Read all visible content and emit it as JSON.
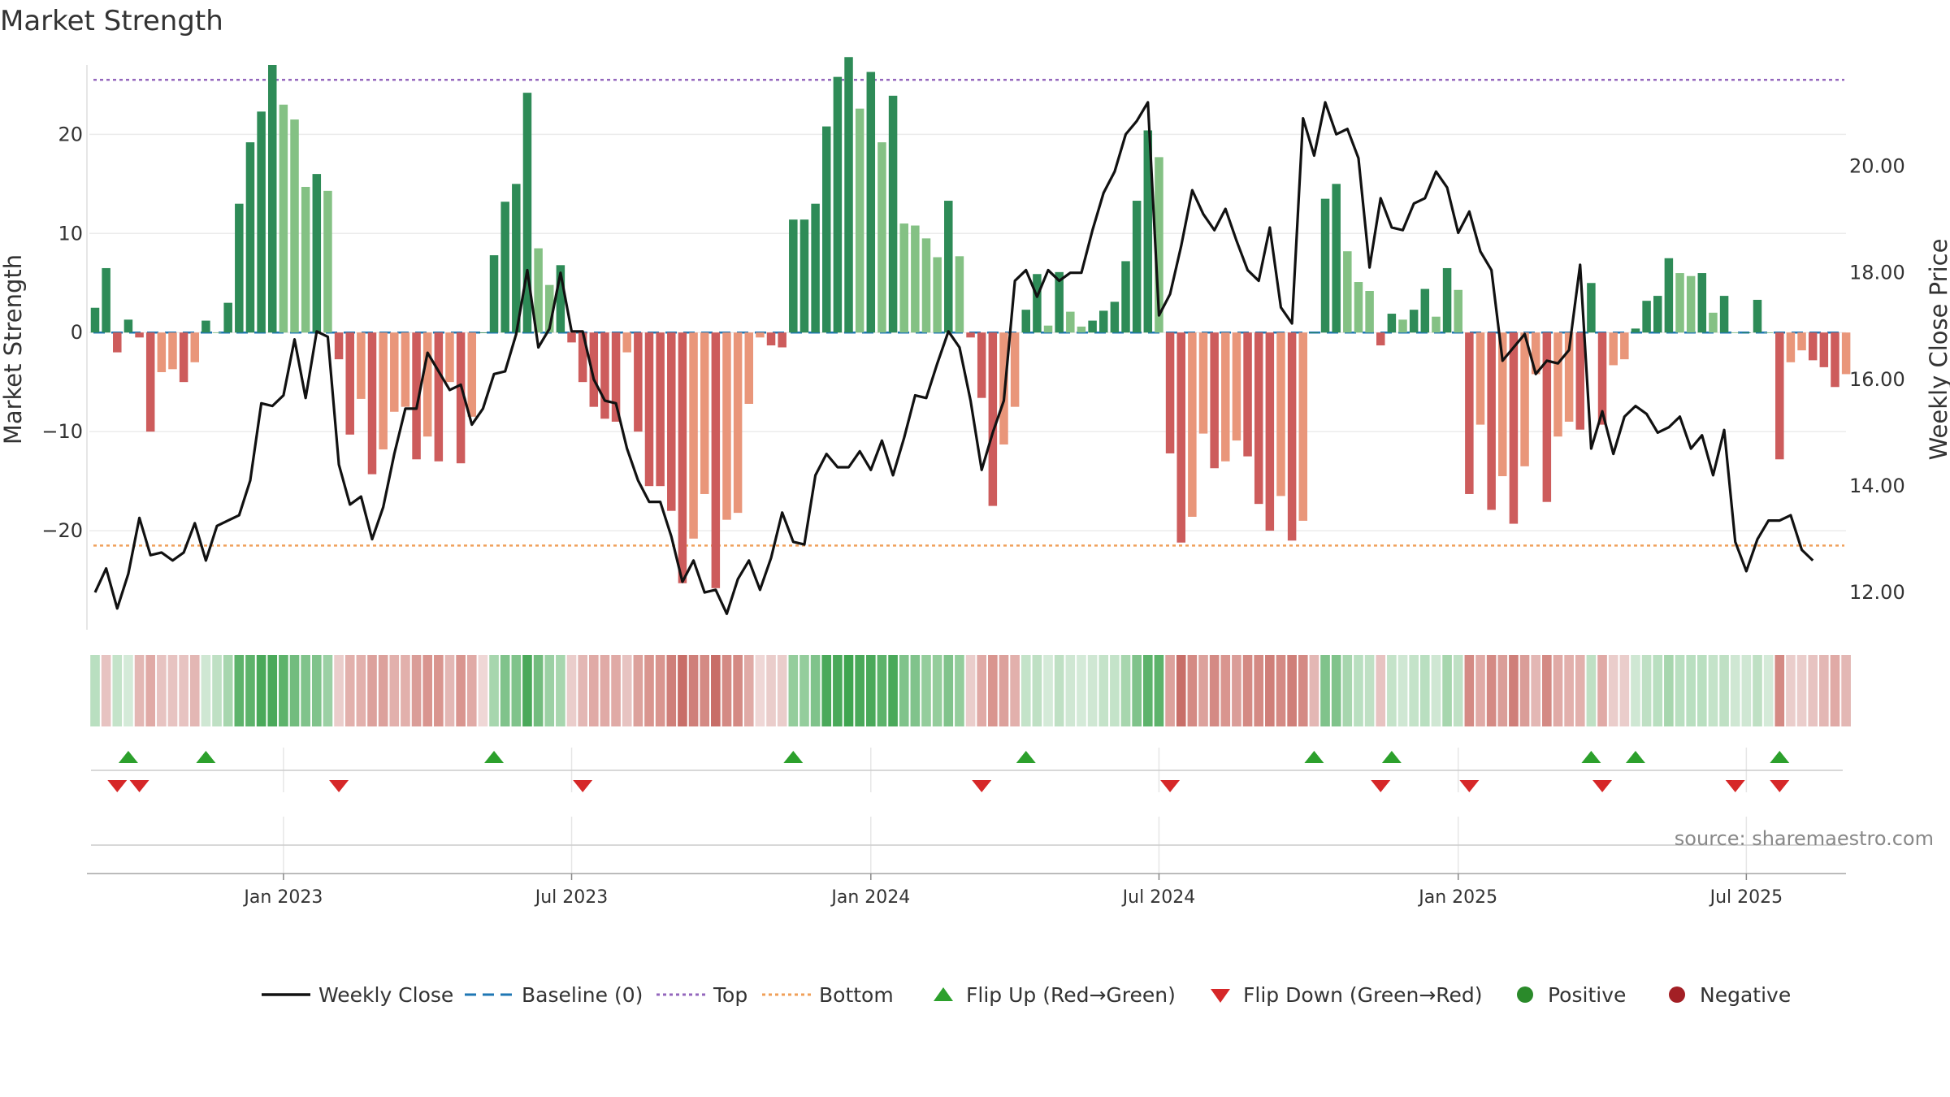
{
  "chart_data": {
    "type": "bar",
    "title": "Market Strength",
    "ylabel_left": "Market Strength",
    "ylabel_right": "Weekly Close Price",
    "left_ylim": [
      -30,
      27
    ],
    "left_ticks": [
      -20,
      -10,
      0,
      10,
      20
    ],
    "left_tick_labels": [
      "−20",
      "−10",
      "0",
      "10",
      "20"
    ],
    "right_ylim": [
      11.3,
      21.9
    ],
    "right_ticks": [
      12,
      14,
      16,
      18,
      20
    ],
    "right_tick_labels": [
      "12.00",
      "14.00",
      "16.00",
      "18.00",
      "20.00"
    ],
    "top_line": 25.5,
    "bottom_line": -21.5,
    "x_ticks": [
      {
        "label": "Jan 2023",
        "week": 17
      },
      {
        "label": "Jul 2023",
        "week": 43
      },
      {
        "label": "Jan 2024",
        "week": 70
      },
      {
        "label": "Jul 2024",
        "week": 96
      },
      {
        "label": "Jan 2025",
        "week": 123
      },
      {
        "label": "Jul 2025",
        "week": 149
      }
    ],
    "strength": [
      2.5,
      6.5,
      -2,
      1.3,
      -0.5,
      -10,
      -4,
      -3.7,
      -5,
      -3,
      1.2,
      0,
      3,
      13,
      19.2,
      22.3,
      27,
      23,
      21.5,
      14.7,
      16,
      14.3,
      -2.7,
      -10.3,
      -6.7,
      -14.3,
      -11.8,
      -8,
      -7.5,
      -12.8,
      -10.5,
      -13,
      -5,
      -13.2,
      -8.5,
      0,
      7.8,
      13.2,
      15,
      24.2,
      8.5,
      4.8,
      6.8,
      -1,
      -5,
      -7.5,
      -8.7,
      -9,
      -2,
      -10,
      -15.5,
      -15.5,
      -18,
      -25.3,
      -20.8,
      -16.3,
      -25.8,
      -18.9,
      -18.2,
      -7.2,
      -0.5,
      -1.3,
      -1.5,
      11.4,
      11.4,
      13,
      20.8,
      25.8,
      27.8,
      22.6,
      26.3,
      19.2,
      23.9,
      11,
      10.8,
      9.5,
      7.6,
      13.3,
      7.7,
      -0.5,
      -6.6,
      -17.5,
      -11.3,
      -7.5,
      2.3,
      5.9,
      0.7,
      6.1,
      2.1,
      0.6,
      1.2,
      2.2,
      3.1,
      7.2,
      13.3,
      20.4,
      17.7,
      -12.2,
      -21.2,
      -18.6,
      -10.2,
      -13.7,
      -13,
      -10.9,
      -12.5,
      -17.3,
      -20,
      -16.5,
      -21,
      -19,
      0,
      13.5,
      15,
      8.2,
      5.1,
      4.2,
      -1.3,
      1.9,
      1.3,
      2.3,
      4.4,
      1.6,
      6.5,
      4.3,
      -16.3,
      -9.3,
      -17.9,
      -14.5,
      -19.3,
      -13.5,
      -4.2,
      -17.1,
      -10.5,
      -9,
      -9.8,
      5,
      -9.3,
      -3.3,
      -2.7,
      0.4,
      3.2,
      3.7,
      7.5,
      6,
      5.7,
      6,
      2,
      3.7,
      0,
      0,
      3.3,
      0,
      -12.8,
      -3,
      -1.8,
      -2.8,
      -3.5,
      -5.5,
      -4.2
    ],
    "weekly_close": [
      12,
      12.45,
      11.7,
      12.35,
      13.4,
      12.7,
      12.75,
      12.6,
      12.75,
      13.3,
      12.6,
      13.25,
      13.35,
      13.45,
      14.1,
      15.55,
      15.5,
      15.7,
      16.75,
      15.65,
      16.9,
      16.8,
      14.4,
      13.65,
      13.8,
      13.0,
      13.6,
      14.6,
      15.45,
      15.45,
      16.5,
      16.15,
      15.8,
      15.9,
      15.15,
      15.45,
      16.1,
      16.15,
      16.85,
      18.05,
      16.6,
      16.95,
      18.0,
      16.9,
      16.9,
      16.0,
      15.6,
      15.55,
      14.7,
      14.1,
      13.7,
      13.7,
      13.05,
      12.2,
      12.6,
      12.0,
      12.05,
      11.6,
      12.25,
      12.6,
      12.05,
      12.65,
      13.5,
      12.95,
      12.9,
      14.2,
      14.6,
      14.35,
      14.35,
      14.65,
      14.3,
      14.85,
      14.2,
      14.9,
      15.7,
      15.65,
      16.3,
      16.9,
      16.6,
      15.6,
      14.3,
      15.0,
      15.6,
      17.85,
      18.05,
      17.55,
      18.05,
      17.85,
      18.0,
      18.0,
      18.8,
      19.5,
      19.9,
      20.6,
      20.85,
      21.2,
      17.2,
      17.6,
      18.5,
      19.55,
      19.1,
      18.8,
      19.2,
      18.6,
      18.05,
      17.85,
      18.85,
      17.35,
      17.05,
      20.9,
      20.2,
      21.2,
      20.6,
      20.7,
      20.15,
      18.1,
      19.4,
      18.85,
      18.8,
      19.3,
      19.4,
      19.9,
      19.6,
      18.75,
      19.15,
      18.4,
      18.05,
      16.35,
      16.6,
      16.85,
      16.1,
      16.35,
      16.3,
      16.55,
      18.15,
      14.7,
      15.4,
      14.6,
      15.3,
      15.5,
      15.35,
      15.0,
      15.1,
      15.3,
      14.7,
      14.95,
      14.2,
      15.05,
      12.95,
      12.4,
      13.0,
      13.35,
      13.35,
      13.45,
      12.8,
      12.6
    ],
    "strip_colors": [
      "#b9dfc0",
      "#e7c3c1",
      "#c4e3c9",
      "#d4ead8",
      "#e3b7b4",
      "#e0aaa6",
      "#e7c3c1",
      "#e7c3c1",
      "#e7c3c1",
      "#e3b7b4",
      "#cfe7d3",
      "#bfe0c4",
      "#a7d6ae",
      "#5db36b",
      "#5db36b",
      "#4aa95a",
      "#4aa95a",
      "#5db36b",
      "#72bc7e",
      "#80c38b",
      "#80c38b",
      "#9bd0a4",
      "#eacdcb",
      "#e2b0ac",
      "#e2b0ac",
      "#dca19c",
      "#dca19c",
      "#e2b0ac",
      "#e2b0ac",
      "#da9d98",
      "#d9958f",
      "#d9958f",
      "#e3b7b4",
      "#d9958f",
      "#e0aaa6",
      "#efd7d6",
      "#a7d6ae",
      "#80c38b",
      "#80c38b",
      "#4aa95a",
      "#72bc7e",
      "#9bd0a4",
      "#a7d6ae",
      "#eacdcb",
      "#e3b7b4",
      "#e0aaa6",
      "#e0aaa6",
      "#e0aaa6",
      "#e7c3c1",
      "#dca19c",
      "#d9958f",
      "#d9958f",
      "#cf7f79",
      "#c86e68",
      "#cf7f79",
      "#d48a84",
      "#c86e68",
      "#d48a84",
      "#d48a84",
      "#e0aaa6",
      "#efd7d6",
      "#eacdcb",
      "#eacdcb",
      "#94cd9c",
      "#94cd9c",
      "#80c38b",
      "#4aa95a",
      "#4aa95a",
      "#3fa550",
      "#4aa95a",
      "#4aa95a",
      "#5db36b",
      "#4aa95a",
      "#80c38b",
      "#80c38b",
      "#94cd9c",
      "#94cd9c",
      "#80c38b",
      "#94cd9c",
      "#eacdcb",
      "#e0aaa6",
      "#d9958f",
      "#dca19c",
      "#e2b0ac",
      "#c4e3c9",
      "#bfe0c4",
      "#d4ead8",
      "#bfe0c4",
      "#cfe7d3",
      "#d4ead8",
      "#cfe7d3",
      "#c4e3c9",
      "#c4e3c9",
      "#a7d6ae",
      "#80c38b",
      "#5db36b",
      "#5db36b",
      "#dca19c",
      "#c86e68",
      "#d48a84",
      "#dca19c",
      "#d48a84",
      "#d9958f",
      "#da9d98",
      "#d48a84",
      "#d48a84",
      "#cf7f79",
      "#d48a84",
      "#cf7f79",
      "#d48a84",
      "#e3b7b4",
      "#80c38b",
      "#80c38b",
      "#a7d6ae",
      "#b9dfc0",
      "#bfe0c4",
      "#e7c3c1",
      "#c4e3c9",
      "#cfe7d3",
      "#c4e3c9",
      "#b9dfc0",
      "#cfe7d3",
      "#a7d6ae",
      "#bfe0c4",
      "#d48a84",
      "#e0aaa6",
      "#d48a84",
      "#da9d98",
      "#cf7f79",
      "#da9d98",
      "#e3b7b4",
      "#d48a84",
      "#e0aaa6",
      "#e2b0ac",
      "#e2b0ac",
      "#bfe0c4",
      "#e0aaa6",
      "#eacdcb",
      "#eacdcb",
      "#cfe7d3",
      "#bfe0c4",
      "#b9dfc0",
      "#a7d6ae",
      "#b9dfc0",
      "#b9dfc0",
      "#b9dfc0",
      "#c4e3c9",
      "#bfe0c4",
      "#cfe7d3",
      "#cfe7d3",
      "#bfe0c4",
      "#d4ead8",
      "#d48a84",
      "#eacdcb",
      "#eacdcb",
      "#e7c3c1",
      "#e3b7b4",
      "#e0aaa6",
      "#e3b7b4"
    ],
    "flip_up_weeks": [
      3,
      10,
      36,
      63,
      84,
      110,
      117,
      135,
      139,
      152
    ],
    "flip_down_weeks": [
      2,
      4,
      22,
      44,
      80,
      97,
      116,
      124,
      136,
      148,
      152
    ],
    "legend": [
      {
        "label": "Weekly Close",
        "symbol": "solid-line",
        "color": "#111111"
      },
      {
        "label": "Baseline (0)",
        "symbol": "dashed-line",
        "color": "#1f77b4"
      },
      {
        "label": "Top",
        "symbol": "dotted-line",
        "color": "#9467bd"
      },
      {
        "label": "Bottom",
        "symbol": "dotted-line",
        "color": "#f0a05a"
      },
      {
        "label": "Flip Up (Red→Green)",
        "symbol": "triangle-up",
        "color": "#2ca02c"
      },
      {
        "label": "Flip Down (Green→Red)",
        "symbol": "triangle-down",
        "color": "#d62728"
      },
      {
        "label": "Positive",
        "symbol": "circle",
        "color": "#2a8a2a"
      },
      {
        "label": "Negative",
        "symbol": "circle",
        "color": "#a31f25"
      }
    ],
    "source_text": "source: sharemaestro.com"
  },
  "colors": {
    "strong_green": "#2e8b57",
    "light_green": "#84c184",
    "strong_red": "#cd5c5c",
    "light_red": "#e9967a",
    "close_line": "#111111",
    "baseline": "#1f77b4",
    "top": "#9467bd",
    "bottom": "#f0a05a",
    "flip_up": "#2ca02c",
    "flip_down": "#d62728"
  }
}
